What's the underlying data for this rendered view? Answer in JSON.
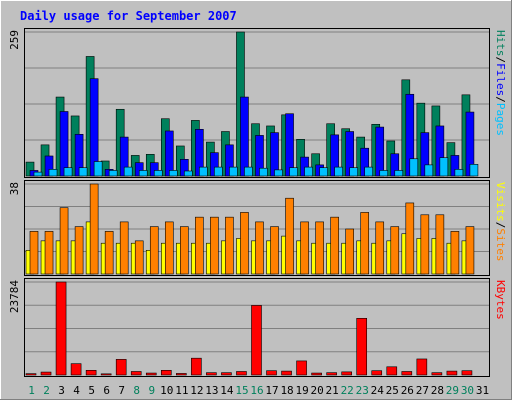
{
  "chart_data": [
    {
      "type": "bar",
      "title": "Daily usage for September 2007",
      "categories": [
        "1",
        "2",
        "3",
        "4",
        "5",
        "6",
        "7",
        "8",
        "9",
        "10",
        "11",
        "12",
        "13",
        "14",
        "15",
        "16",
        "17",
        "18",
        "19",
        "20",
        "21",
        "22",
        "23",
        "24",
        "25",
        "26",
        "27",
        "28",
        "29",
        "30",
        "31"
      ],
      "weekend_days": [
        "1",
        "2",
        "8",
        "9",
        "15",
        "16",
        "22",
        "23",
        "29",
        "30"
      ],
      "ylim": [
        0,
        259
      ],
      "ytick_label": "259",
      "series": [
        {
          "name": "Hits",
          "color": "#00805C",
          "values": [
            25,
            56,
            142,
            108,
            215,
            27,
            120,
            37,
            39,
            103,
            54,
            100,
            61,
            80,
            259,
            94,
            90,
            110,
            66,
            40,
            94,
            85,
            70,
            93,
            63,
            173,
            131,
            126,
            60,
            146,
            0
          ]
        },
        {
          "name": "Files",
          "color": "#0000FF",
          "values": [
            10,
            36,
            116,
            75,
            175,
            12,
            70,
            24,
            24,
            81,
            30,
            84,
            42,
            56,
            142,
            73,
            78,
            112,
            34,
            20,
            74,
            80,
            50,
            88,
            40,
            147,
            78,
            90,
            37,
            115,
            0
          ]
        },
        {
          "name": "Pages",
          "color": "#00C0FF",
          "values": [
            7,
            12,
            15,
            15,
            26,
            10,
            16,
            10,
            10,
            10,
            9,
            16,
            16,
            16,
            16,
            14,
            11,
            15,
            16,
            15,
            16,
            15,
            16,
            10,
            10,
            31,
            20,
            33,
            12,
            21,
            0
          ]
        }
      ],
      "legend_order": [
        "Pages",
        "Files",
        "Hits"
      ]
    },
    {
      "type": "bar",
      "categories": [
        "1",
        "2",
        "3",
        "4",
        "5",
        "6",
        "7",
        "8",
        "9",
        "10",
        "11",
        "12",
        "13",
        "14",
        "15",
        "16",
        "17",
        "18",
        "19",
        "20",
        "21",
        "22",
        "23",
        "24",
        "25",
        "26",
        "27",
        "28",
        "29",
        "30",
        "31"
      ],
      "ylim": [
        0,
        38
      ],
      "ytick_label": "38",
      "series": [
        {
          "name": "Visits",
          "color": "#FFFF00",
          "values": [
            10,
            14,
            14,
            14,
            22,
            13,
            13,
            13,
            10,
            13,
            13,
            13,
            13,
            14,
            15,
            14,
            14,
            16,
            14,
            13,
            13,
            13,
            14,
            13,
            14,
            17,
            15,
            15,
            13,
            14,
            0
          ]
        },
        {
          "name": "Sites",
          "color": "#FF8000",
          "values": [
            18,
            18,
            28,
            20,
            38,
            18,
            22,
            14,
            20,
            22,
            20,
            24,
            24,
            24,
            26,
            22,
            20,
            32,
            22,
            22,
            24,
            19,
            26,
            22,
            20,
            30,
            25,
            25,
            18,
            20,
            0
          ]
        }
      ],
      "legend_order": [
        "Sites",
        "Visits"
      ]
    },
    {
      "type": "bar",
      "categories": [
        "1",
        "2",
        "3",
        "4",
        "5",
        "6",
        "7",
        "8",
        "9",
        "10",
        "11",
        "12",
        "13",
        "14",
        "15",
        "16",
        "17",
        "18",
        "19",
        "20",
        "21",
        "22",
        "23",
        "24",
        "25",
        "26",
        "27",
        "28",
        "29",
        "30",
        "31"
      ],
      "ylim": [
        0,
        23784
      ],
      "ytick_label": "23784",
      "series": [
        {
          "name": "KBytes",
          "color": "#FF0000",
          "values": [
            350,
            750,
            23784,
            2900,
            1200,
            300,
            4000,
            900,
            500,
            1200,
            400,
            4300,
            600,
            600,
            900,
            17800,
            1100,
            1000,
            3600,
            500,
            600,
            800,
            14500,
            1100,
            2100,
            900,
            4100,
            600,
            1000,
            1100,
            0
          ]
        }
      ],
      "legend_order": [
        "KBytes"
      ]
    }
  ]
}
